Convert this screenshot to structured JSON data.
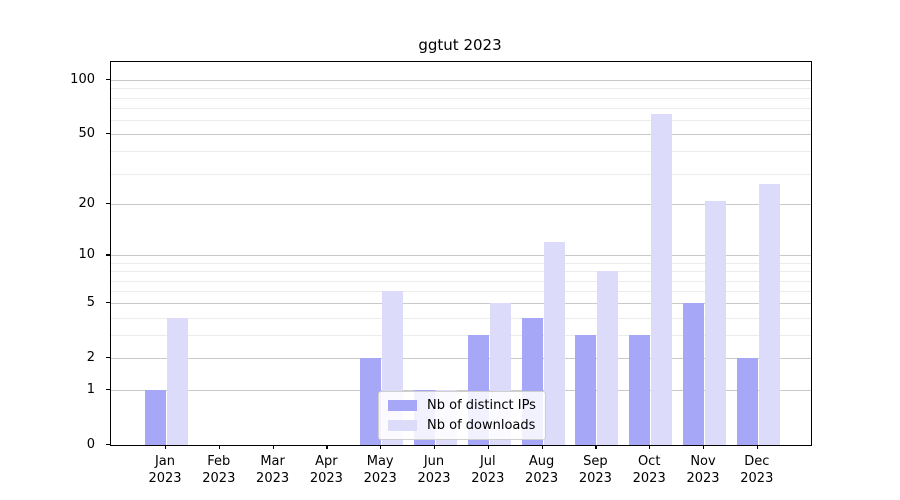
{
  "title": "ggtut 2023",
  "chart_data": {
    "type": "bar",
    "title": "ggtut 2023",
    "xlabel": "",
    "ylabel": "",
    "categories": [
      "Jan",
      "Feb",
      "Mar",
      "Apr",
      "May",
      "Jun",
      "Jul",
      "Aug",
      "Sep",
      "Oct",
      "Nov",
      "Dec"
    ],
    "category_year": "2023",
    "series": [
      {
        "name": "Nb of distinct IPs",
        "color": "#a7a7f8",
        "values": [
          1,
          0,
          0,
          0,
          2,
          1,
          3,
          4,
          3,
          3,
          5,
          2
        ]
      },
      {
        "name": "Nb of downloads",
        "color": "#dcdcfa",
        "values": [
          4,
          0,
          0,
          0,
          6,
          1,
          5,
          12,
          8,
          65,
          21,
          26
        ]
      }
    ],
    "y_scale": "log1p",
    "ylim": [
      0,
      126
    ],
    "y_major_ticks": [
      {
        "value": 0,
        "label": "0"
      },
      {
        "value": 1,
        "label": "1"
      },
      {
        "value": 2,
        "label": "2"
      },
      {
        "value": 5,
        "label": "5"
      },
      {
        "value": 10,
        "label": "10"
      },
      {
        "value": 20,
        "label": "20"
      },
      {
        "value": 50,
        "label": "50"
      },
      {
        "value": 100,
        "label": "100"
      }
    ],
    "y_minor_ticks": [
      3,
      4,
      6,
      7,
      8,
      9,
      30,
      40,
      60,
      70,
      80,
      90
    ],
    "grid": true,
    "legend_position": "lower center",
    "legend": [
      "Nb of distinct IPs",
      "Nb of downloads"
    ]
  },
  "legend": {
    "items": [
      {
        "label": "Nb of distinct IPs",
        "color": "#a7a7f8"
      },
      {
        "label": "Nb of downloads",
        "color": "#dcdcfa"
      }
    ]
  },
  "colors": {
    "bar_dark": "#a7a7f8",
    "bar_light": "#dcdcfa",
    "grid_major": "#c9c9c9",
    "grid_minor": "#ececec",
    "axis": "#000000"
  }
}
